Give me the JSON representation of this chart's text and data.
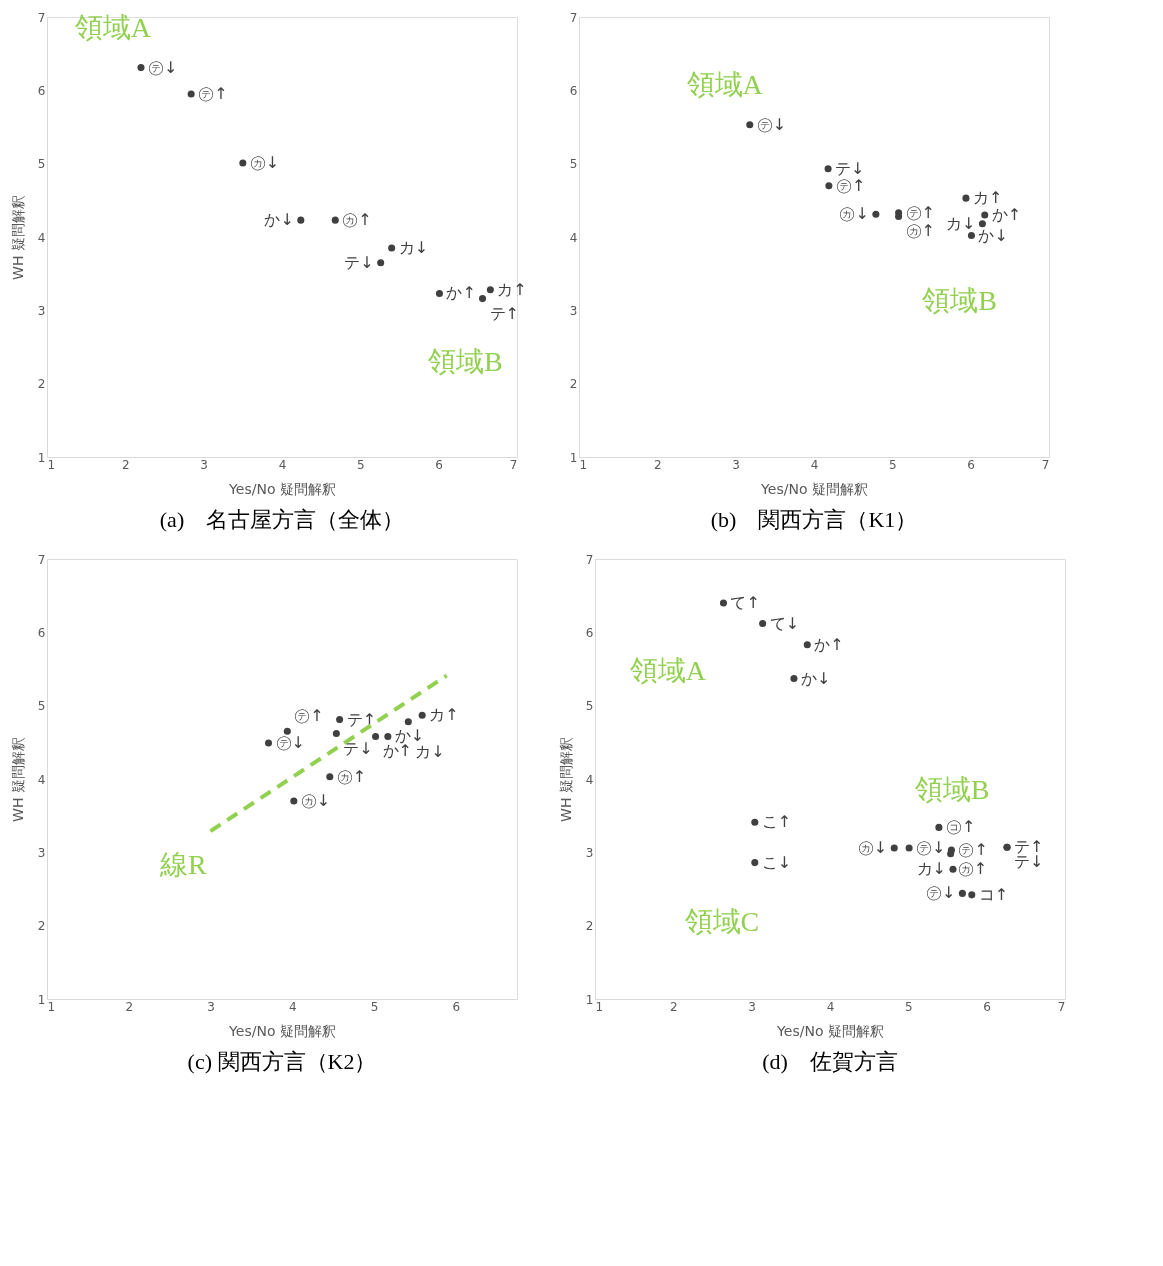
{
  "chart_data": [
    {
      "type": "scatter",
      "title": "(a)　名古屋方言（全体）",
      "xlabel": "Yes/No 疑問解釈",
      "ylabel": "WH 疑問解釈",
      "marker": "circle",
      "xlim": [
        1,
        7
      ],
      "ylim": [
        1,
        7
      ],
      "xticks": [
        1,
        2,
        3,
        4,
        5,
        6,
        7
      ],
      "yticks": [
        1,
        2,
        3,
        4,
        5,
        6,
        7
      ],
      "series": [
        {
          "color": "#404040",
          "x": [
            2.2,
            2.84,
            3.5,
            4.24,
            4.68,
            5.4,
            5.26,
            6.01,
            6.66,
            6.56
          ],
          "values": [
            6.31,
            5.95,
            5.01,
            4.23,
            4.23,
            3.85,
            3.65,
            3.23,
            3.28,
            3.16
          ],
          "value_labels": [
            "㋢↓",
            "㋢↑",
            "㋕↓",
            "か↓",
            "㋕↑",
            "カ↓",
            "テ↓",
            "か↑",
            "カ↑",
            "テ↑"
          ]
        }
      ],
      "annotations": [
        "領域A",
        "領域B"
      ]
    },
    {
      "type": "scatter",
      "title": "(b)　関西方言（K1）",
      "xlabel": "Yes/No 疑問解釈",
      "marker": "circle",
      "xlim": [
        1,
        7
      ],
      "ylim": [
        1,
        7
      ],
      "xticks": [
        1,
        2,
        3,
        4,
        5,
        6,
        7
      ],
      "yticks": [
        1,
        2,
        3,
        4,
        5,
        6,
        7
      ],
      "series": [
        {
          "color": "#404040",
          "x": [
            3.18,
            4.18,
            4.19,
            4.79,
            5.08,
            5.08,
            5.94,
            6.18,
            6.15,
            6.01
          ],
          "values": [
            5.53,
            4.93,
            4.7,
            4.31,
            4.33,
            4.28,
            4.53,
            4.3,
            4.18,
            4.02
          ],
          "value_labels": [
            "㋢↓",
            "テ↓",
            "㋢↑",
            "㋕↓",
            "㋢↑",
            "㋕↑",
            "カ↑",
            "か↑",
            "カ↓",
            "か↓"
          ]
        }
      ],
      "annotations": [
        "領域A",
        "領域B"
      ]
    },
    {
      "type": "scatter",
      "title": "(c)  関西方言（K2）",
      "xlabel": "Yes/No 疑問解釈",
      "ylabel": "WH 疑問解釈",
      "xlim": [
        1,
        6.75
      ],
      "ylim": [
        1,
        7
      ],
      "xticks": [
        1,
        2,
        3,
        4,
        5,
        6
      ],
      "yticks": [
        1,
        2,
        3,
        4,
        5,
        6,
        7
      ],
      "series": [
        {
          "color": "#404040",
          "marker": "circle",
          "x": [
            3.71,
            3.94,
            4.58,
            4.54,
            5.02,
            5.17,
            5.42,
            5.59,
            4.46,
            4.02
          ],
          "values": [
            4.49,
            4.65,
            4.81,
            4.62,
            4.58,
            4.58,
            4.78,
            4.87,
            4.03,
            3.7
          ],
          "value_labels": [
            "㋢↓",
            "㋢↑",
            "テ↑",
            "テ↓",
            "か↑",
            "か↓",
            "カ↓",
            "カ↑",
            "㋕↑",
            "㋕↓"
          ]
        },
        {
          "type": "line",
          "color": "#92d050",
          "line_style": "dashed",
          "x": [
            3.0,
            5.89
          ],
          "values": [
            3.29,
            5.41
          ]
        }
      ],
      "annotations": [
        "線R"
      ]
    },
    {
      "type": "scatter",
      "title": "(d)　佐賀方言",
      "xlabel": "Yes/No 疑問解釈",
      "ylabel": "WH 疑問解釈",
      "marker": "circle",
      "xlim": [
        1,
        7
      ],
      "ylim": [
        1,
        7
      ],
      "xticks": [
        1,
        2,
        3,
        4,
        5,
        6,
        7
      ],
      "yticks": [
        1,
        2,
        3,
        4,
        5,
        6,
        7
      ],
      "series": [
        {
          "color": "#404040",
          "x": [
            2.64,
            3.14,
            3.71,
            3.54,
            3.04,
            3.04,
            5.39,
            4.82,
            5.01,
            5.55,
            5.54,
            6.26,
            6.26,
            5.57,
            5.69,
            5.81
          ],
          "values": [
            6.4,
            6.12,
            5.83,
            5.37,
            3.41,
            2.86,
            3.34,
            3.06,
            3.06,
            3.03,
            2.98,
            3.07,
            3.07,
            2.77,
            2.44,
            2.42
          ],
          "value_labels": [
            "て↑",
            "て↓",
            "か↑",
            "か↓",
            "こ↑",
            "こ↓",
            "㋙↑",
            "㋕↓",
            "㋢↓",
            "㋢↑",
            "㋕↑",
            "テ↑",
            "テ↓",
            "カ↓",
            "㋢↓",
            "コ↑"
          ]
        }
      ],
      "annotations": [
        "領域A",
        "領域B",
        "領域C"
      ]
    }
  ]
}
